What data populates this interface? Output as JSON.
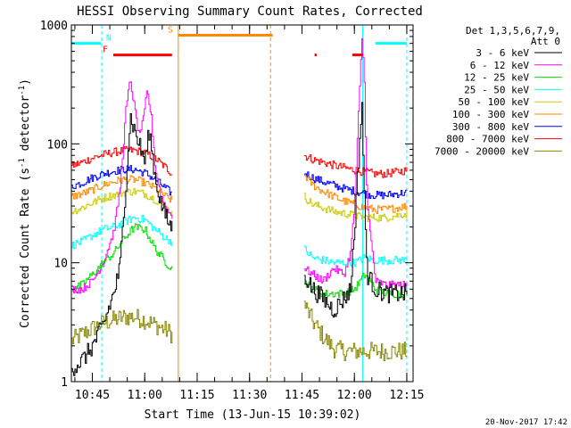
{
  "chart_data": {
    "type": "line",
    "title": "HESSI Observing Summary Count Rates, Corrected",
    "xlabel": "Start Time (13-Jun-15 10:39:02)",
    "ylabel": "Corrected Count Rate (s⁻¹ detector⁻¹)",
    "ylabel_main": "Corrected Count Rate (s",
    "ylabel_sup1": "-1",
    "ylabel_mid": " detector",
    "ylabel_sup2": "-1",
    "ylabel_end": ")",
    "yscale": "log",
    "ylim": [
      1,
      1000
    ],
    "xlim": [
      10.65,
      12.28
    ],
    "x_unit": "hours",
    "y_ticks": [
      {
        "value": 1,
        "label": "1"
      },
      {
        "value": 10,
        "label": "10"
      },
      {
        "value": 100,
        "label": "100"
      },
      {
        "value": 1000,
        "label": "1000"
      }
    ],
    "x_ticks": [
      {
        "value": 10.75,
        "label": "10:45"
      },
      {
        "value": 11.0,
        "label": "11:00"
      },
      {
        "value": 11.25,
        "label": "11:15"
      },
      {
        "value": 11.5,
        "label": "11:30"
      },
      {
        "value": 11.75,
        "label": "11:45"
      },
      {
        "value": 12.0,
        "label": "12:00"
      },
      {
        "value": 12.25,
        "label": "12:15"
      }
    ],
    "legend_header": [
      "Det 1,3,5,6,7,9,",
      "Att 0"
    ],
    "legend_position": "right",
    "gaps": [
      [
        11.13,
        11.75
      ]
    ],
    "series": [
      {
        "name": "3 - 6 keV",
        "color": "#000000",
        "seg1": [
          [
            10.65,
            1.3
          ],
          [
            10.7,
            1.5
          ],
          [
            10.75,
            2.0
          ],
          [
            10.8,
            3.0
          ],
          [
            10.85,
            5.5
          ],
          [
            10.88,
            9
          ],
          [
            10.91,
            50
          ],
          [
            10.93,
            170
          ],
          [
            10.95,
            130
          ],
          [
            10.98,
            90
          ],
          [
            11.0,
            70
          ],
          [
            11.02,
            130
          ],
          [
            11.05,
            50
          ],
          [
            11.08,
            30
          ],
          [
            11.11,
            22
          ],
          [
            11.13,
            20
          ]
        ],
        "seg2": [
          [
            11.76,
            8
          ],
          [
            11.8,
            6
          ],
          [
            11.85,
            5
          ],
          [
            11.9,
            4
          ],
          [
            11.95,
            5
          ],
          [
            11.98,
            6
          ],
          [
            12.0,
            20
          ],
          [
            12.02,
            80
          ],
          [
            12.035,
            230
          ],
          [
            12.045,
            40
          ],
          [
            12.06,
            8
          ],
          [
            12.1,
            6
          ],
          [
            12.15,
            5.5
          ],
          [
            12.2,
            5.5
          ],
          [
            12.25,
            5.5
          ]
        ]
      },
      {
        "name": "6 - 12 keV",
        "color": "#ff00ff",
        "seg1": [
          [
            10.65,
            6
          ],
          [
            10.7,
            6
          ],
          [
            10.75,
            7
          ],
          [
            10.8,
            10
          ],
          [
            10.85,
            18
          ],
          [
            10.88,
            40
          ],
          [
            10.91,
            200
          ],
          [
            10.93,
            350
          ],
          [
            10.95,
            200
          ],
          [
            10.97,
            120
          ],
          [
            10.99,
            150
          ],
          [
            11.01,
            280
          ],
          [
            11.03,
            170
          ],
          [
            11.05,
            60
          ],
          [
            11.08,
            35
          ],
          [
            11.11,
            27
          ],
          [
            11.13,
            25
          ]
        ],
        "seg2": [
          [
            11.76,
            9
          ],
          [
            11.8,
            8
          ],
          [
            11.85,
            7
          ],
          [
            11.9,
            9
          ],
          [
            11.95,
            8
          ],
          [
            11.98,
            12
          ],
          [
            12.0,
            30
          ],
          [
            12.02,
            200
          ],
          [
            12.035,
            800
          ],
          [
            12.045,
            400
          ],
          [
            12.06,
            30
          ],
          [
            12.1,
            7
          ],
          [
            12.15,
            6.5
          ],
          [
            12.2,
            6.5
          ],
          [
            12.25,
            6.5
          ]
        ]
      },
      {
        "name": "12 - 25 keV",
        "color": "#00dd00",
        "seg1": [
          [
            10.65,
            6
          ],
          [
            10.7,
            6.5
          ],
          [
            10.75,
            8
          ],
          [
            10.8,
            10
          ],
          [
            10.85,
            12
          ],
          [
            10.9,
            16
          ],
          [
            10.95,
            20
          ],
          [
            11.0,
            19
          ],
          [
            11.05,
            13
          ],
          [
            11.1,
            10
          ],
          [
            11.13,
            9
          ]
        ],
        "seg2": [
          [
            11.76,
            7
          ],
          [
            11.8,
            6
          ],
          [
            11.85,
            5.5
          ],
          [
            11.9,
            5.5
          ],
          [
            11.95,
            5.5
          ],
          [
            12.0,
            6
          ],
          [
            12.05,
            8
          ],
          [
            12.1,
            6
          ],
          [
            12.15,
            5.5
          ],
          [
            12.2,
            5.5
          ],
          [
            12.25,
            5.5
          ]
        ]
      },
      {
        "name": "25 - 50 keV",
        "color": "#00ffff",
        "seg1": [
          [
            10.65,
            14
          ],
          [
            10.7,
            15
          ],
          [
            10.75,
            17
          ],
          [
            10.8,
            19
          ],
          [
            10.85,
            20
          ],
          [
            10.9,
            22
          ],
          [
            10.95,
            24
          ],
          [
            11.0,
            23
          ],
          [
            11.05,
            19
          ],
          [
            11.1,
            16
          ],
          [
            11.13,
            15
          ]
        ],
        "seg2": [
          [
            11.76,
            13
          ],
          [
            11.8,
            11
          ],
          [
            11.85,
            10.5
          ],
          [
            11.9,
            10
          ],
          [
            11.95,
            10
          ],
          [
            12.0,
            10
          ],
          [
            12.05,
            11
          ],
          [
            12.1,
            10.5
          ],
          [
            12.15,
            10.5
          ],
          [
            12.2,
            10.5
          ],
          [
            12.25,
            10.5
          ]
        ]
      },
      {
        "name": "50 - 100 keV",
        "color": "#cccc00",
        "seg1": [
          [
            10.65,
            27
          ],
          [
            10.7,
            29
          ],
          [
            10.75,
            32
          ],
          [
            10.8,
            35
          ],
          [
            10.85,
            37
          ],
          [
            10.9,
            39
          ],
          [
            10.95,
            40
          ],
          [
            11.0,
            38
          ],
          [
            11.05,
            34
          ],
          [
            11.1,
            29
          ],
          [
            11.13,
            26
          ]
        ],
        "seg2": [
          [
            11.76,
            36
          ],
          [
            11.8,
            31
          ],
          [
            11.85,
            29
          ],
          [
            11.9,
            27
          ],
          [
            11.95,
            26
          ],
          [
            12.0,
            25
          ],
          [
            12.05,
            24
          ],
          [
            12.1,
            24
          ],
          [
            12.15,
            24
          ],
          [
            12.2,
            25
          ],
          [
            12.25,
            26
          ]
        ]
      },
      {
        "name": "100 - 300 keV",
        "color": "#ff8800",
        "seg1": [
          [
            10.65,
            36
          ],
          [
            10.7,
            38
          ],
          [
            10.75,
            41
          ],
          [
            10.8,
            45
          ],
          [
            10.85,
            48
          ],
          [
            10.9,
            50
          ],
          [
            10.95,
            50
          ],
          [
            11.0,
            47
          ],
          [
            11.05,
            42
          ],
          [
            11.1,
            36
          ],
          [
            11.13,
            33
          ]
        ],
        "seg2": [
          [
            11.76,
            55
          ],
          [
            11.8,
            45
          ],
          [
            11.85,
            40
          ],
          [
            11.9,
            36
          ],
          [
            11.95,
            33
          ],
          [
            12.0,
            31
          ],
          [
            12.05,
            29
          ],
          [
            12.1,
            28
          ],
          [
            12.15,
            28
          ],
          [
            12.2,
            29
          ],
          [
            12.25,
            30
          ]
        ]
      },
      {
        "name": "300 - 800 keV",
        "color": "#0000ff",
        "seg1": [
          [
            10.65,
            44
          ],
          [
            10.7,
            47
          ],
          [
            10.75,
            52
          ],
          [
            10.8,
            56
          ],
          [
            10.85,
            59
          ],
          [
            10.9,
            61
          ],
          [
            10.95,
            61
          ],
          [
            11.0,
            57
          ],
          [
            11.05,
            50
          ],
          [
            11.1,
            42
          ],
          [
            11.13,
            38
          ]
        ],
        "seg2": [
          [
            11.76,
            57
          ],
          [
            11.8,
            52
          ],
          [
            11.85,
            48
          ],
          [
            11.9,
            45
          ],
          [
            11.95,
            42
          ],
          [
            12.0,
            40
          ],
          [
            12.05,
            38
          ],
          [
            12.1,
            37
          ],
          [
            12.15,
            37
          ],
          [
            12.2,
            38
          ],
          [
            12.25,
            39
          ]
        ]
      },
      {
        "name": "800 - 7000 keV",
        "color": "#ff0000",
        "seg1": [
          [
            10.65,
            65
          ],
          [
            10.7,
            70
          ],
          [
            10.75,
            76
          ],
          [
            10.8,
            81
          ],
          [
            10.85,
            85
          ],
          [
            10.9,
            88
          ],
          [
            10.95,
            88
          ],
          [
            11.0,
            84
          ],
          [
            11.05,
            75
          ],
          [
            11.1,
            63
          ],
          [
            11.13,
            56
          ]
        ],
        "seg2": [
          [
            11.76,
            80
          ],
          [
            11.8,
            74
          ],
          [
            11.85,
            70
          ],
          [
            11.9,
            66
          ],
          [
            11.95,
            63
          ],
          [
            12.0,
            60
          ],
          [
            12.05,
            58
          ],
          [
            12.1,
            56
          ],
          [
            12.15,
            56
          ],
          [
            12.2,
            58
          ],
          [
            12.25,
            60
          ]
        ]
      },
      {
        "name": "7000 - 20000 keV",
        "color": "#888800",
        "seg1": [
          [
            10.65,
            2.2
          ],
          [
            10.7,
            2.5
          ],
          [
            10.75,
            2.8
          ],
          [
            10.8,
            3.1
          ],
          [
            10.85,
            3.3
          ],
          [
            10.9,
            3.5
          ],
          [
            10.95,
            3.5
          ],
          [
            11.0,
            3.3
          ],
          [
            11.05,
            3.0
          ],
          [
            11.1,
            2.7
          ],
          [
            11.13,
            2.5
          ]
        ],
        "seg2": [
          [
            11.76,
            4.5
          ],
          [
            11.8,
            3.2
          ],
          [
            11.85,
            2.4
          ],
          [
            11.9,
            1.9
          ],
          [
            11.95,
            1.8
          ],
          [
            12.0,
            1.8
          ],
          [
            12.05,
            1.8
          ],
          [
            12.1,
            1.8
          ],
          [
            12.15,
            1.8
          ],
          [
            12.2,
            1.8
          ],
          [
            12.25,
            1.8
          ]
        ]
      }
    ],
    "flag_bars": [
      {
        "label": "N",
        "color": "#00ffff",
        "y_value": 700,
        "ranges": [
          [
            10.65,
            10.79
          ],
          [
            12.1,
            12.25
          ]
        ]
      },
      {
        "label": "F",
        "color": "#ff0000",
        "y_value": 560,
        "ranges": [
          [
            10.85,
            11.13
          ],
          [
            11.81,
            11.82
          ],
          [
            11.99,
            12.04
          ]
        ]
      },
      {
        "label": "S",
        "color": "#ff8800",
        "y_value": 820,
        "ranges": [
          [
            11.16,
            11.61
          ]
        ]
      }
    ],
    "vlines": [
      {
        "x": 10.795,
        "color": "#00ffff",
        "style": "dashed"
      },
      {
        "x": 12.04,
        "color": "#00ffff",
        "style": "solid"
      },
      {
        "x": 12.25,
        "color": "#00ffff",
        "style": "dashed"
      },
      {
        "x": 11.16,
        "color": "#ff8800",
        "style": "solid"
      },
      {
        "x": 11.6,
        "color": "#ff8800",
        "style": "dashed"
      }
    ]
  },
  "timestamp": "20-Nov-2017 17:42"
}
